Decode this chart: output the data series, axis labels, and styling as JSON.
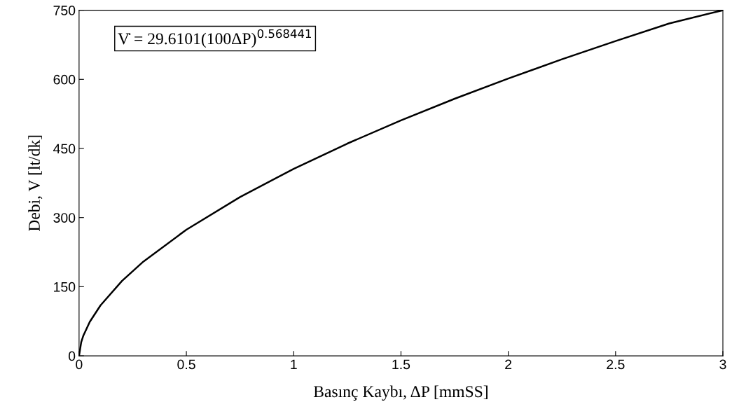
{
  "chart_data": {
    "type": "line",
    "xlabel": "Basınç Kaybı, ΔP [mmSS]",
    "ylabel": "Debi, V [lt/dk]",
    "annotations": [
      "V̇ = 29.6101(100ΔP)$^{0.568441}$"
    ],
    "x": [
      0,
      0.01,
      0.02,
      0.05,
      0.1,
      0.2,
      0.3,
      0.5,
      0.75,
      1,
      1.25,
      1.5,
      1.75,
      2,
      2.25,
      2.5,
      2.75,
      3
    ],
    "series": [
      {
        "color": "#000000",
        "values": [
          0,
          29.6,
          43.9,
          73.9,
          109.6,
          162.6,
          204.7,
          273.7,
          344.6,
          405.8,
          460.6,
          511.0,
          557.9,
          601.8,
          643.5,
          683.1,
          721.3,
          750
        ]
      }
    ],
    "xlim": [
      0,
      3
    ],
    "xticks": [
      0,
      0.5,
      1,
      1.5,
      2,
      2.5,
      3
    ],
    "ylim": [
      0,
      750
    ],
    "yticks": [
      0,
      150,
      300,
      450,
      600,
      750
    ],
    "grid": false,
    "legend": false,
    "marker": "none",
    "line_style": "solid"
  }
}
